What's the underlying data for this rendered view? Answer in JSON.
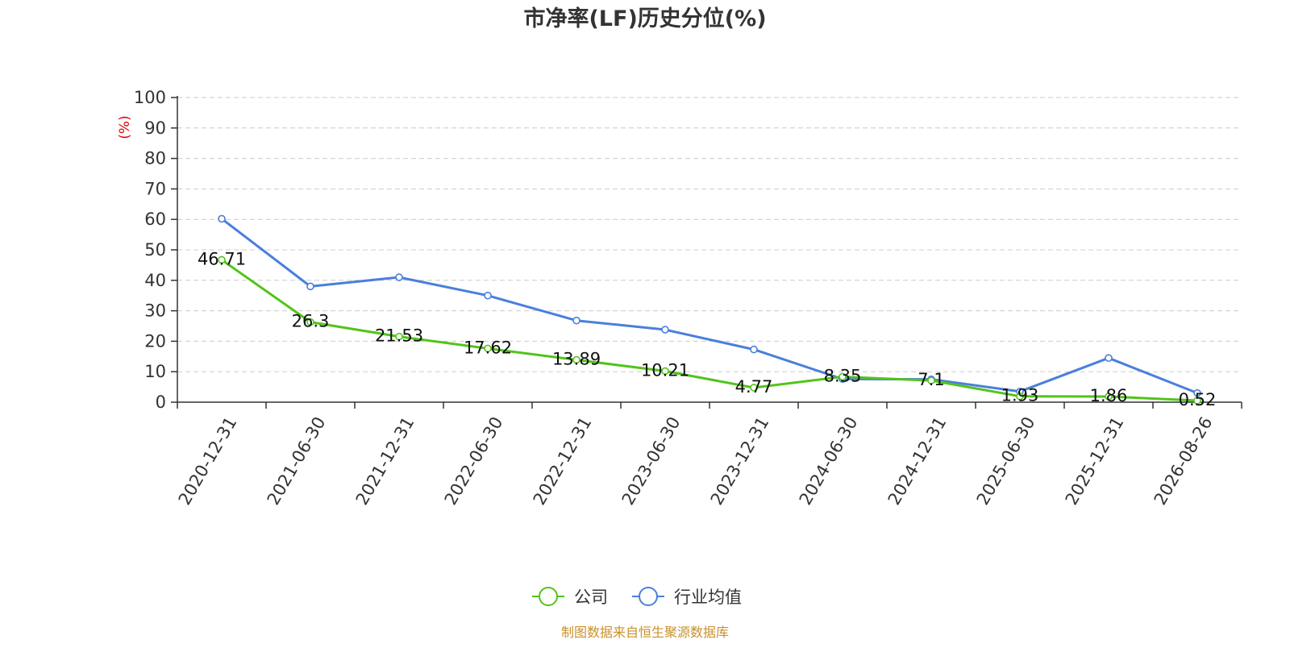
{
  "chart_data": {
    "type": "line",
    "title": "市净率(LF)历史分位(%)",
    "ylabel": "(%)",
    "xlabel": "",
    "ylim": [
      0,
      100
    ],
    "yticks": [
      0,
      10,
      20,
      30,
      40,
      50,
      60,
      70,
      80,
      90,
      100
    ],
    "categories": [
      "2020-12-31",
      "2021-06-30",
      "2021-12-31",
      "2022-06-30",
      "2022-12-31",
      "2023-06-30",
      "2023-12-31",
      "2024-06-30",
      "2024-12-31",
      "2025-06-30",
      "2025-12-31",
      "2026-08-26"
    ],
    "grid": "horizontal dashed",
    "legend_position": "bottom-center",
    "series": [
      {
        "name": "公司",
        "color": "#52c41a",
        "values": [
          46.71,
          26.3,
          21.53,
          17.62,
          13.89,
          10.21,
          4.77,
          8.35,
          7.1,
          1.93,
          1.86,
          0.52
        ],
        "data_labels": [
          "46.71",
          "26.3",
          "21.53",
          "17.62",
          "13.89",
          "10.21",
          "4.77",
          "8.35",
          "7.1",
          "1.93",
          "1.86",
          "0.52"
        ]
      },
      {
        "name": "行业均值",
        "color": "#4a7fdc",
        "values": [
          60.2,
          38.0,
          41.0,
          35.0,
          26.8,
          23.8,
          17.3,
          7.6,
          7.5,
          3.5,
          14.5,
          3.0
        ]
      }
    ]
  },
  "source": "制图数据来自恒生聚源数据库",
  "colors": {
    "unit_label": "#e00000",
    "source_text": "#c8922a",
    "axis": "#333333",
    "grid": "#cccccc"
  }
}
